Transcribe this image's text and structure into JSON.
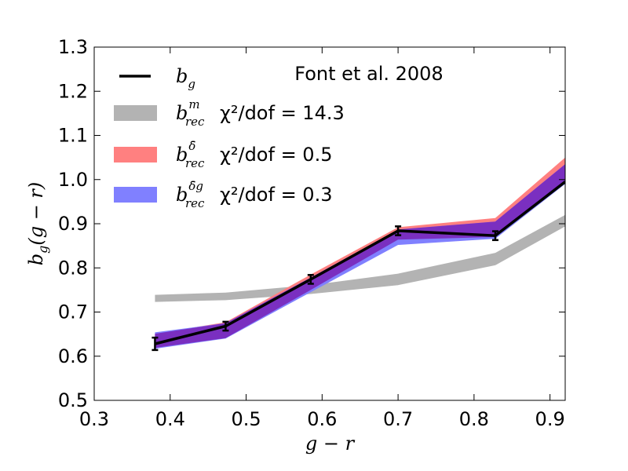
{
  "chart_data": {
    "type": "line",
    "xlabel": "g − r",
    "ylabel": "b",
    "ylabel_sub": "g",
    "ylabel_tail": "(g − r)",
    "xlim": [
      0.3,
      0.92
    ],
    "ylim": [
      0.5,
      1.3
    ],
    "xticks": [
      "0.3",
      "0.4",
      "0.5",
      "0.6",
      "0.7",
      "0.8",
      "0.9"
    ],
    "yticks": [
      "0.5",
      "0.6",
      "0.7",
      "0.8",
      "0.9",
      "1.0",
      "1.1",
      "1.2",
      "1.3"
    ],
    "annotation": "Font et al. 2008",
    "legend_position": "top-left",
    "series": [
      {
        "key": "bg",
        "style": "line-with-errors",
        "color": "#000000",
        "legend_symbol": "b",
        "legend_sub": "g",
        "legend_sup": "",
        "legend_chi": "",
        "x": [
          0.38,
          0.473,
          0.585,
          0.7,
          0.828,
          0.92
        ],
        "y": [
          0.628,
          0.668,
          0.774,
          0.884,
          0.873,
          0.995
        ],
        "err": [
          0.014,
          0.01,
          0.01,
          0.01,
          0.01,
          0.0
        ]
      },
      {
        "key": "brec_m",
        "style": "band",
        "color": "#b3b3b3",
        "legend_symbol": "b",
        "legend_sub": "rec",
        "legend_sup": "m",
        "legend_chi": "χ²/dof = 14.3",
        "x": [
          0.38,
          0.473,
          0.585,
          0.7,
          0.828,
          0.92
        ],
        "lower": [
          0.723,
          0.727,
          0.741,
          0.761,
          0.806,
          0.894
        ],
        "upper": [
          0.739,
          0.744,
          0.761,
          0.787,
          0.834,
          0.92
        ]
      },
      {
        "key": "brec_delta",
        "style": "band",
        "color": "#ff8080",
        "legend_symbol": "b",
        "legend_sub": "rec",
        "legend_sup": "δ̄",
        "legend_chi": "χ²/dof = 0.5",
        "x": [
          0.38,
          0.473,
          0.585,
          0.7,
          0.828,
          0.92
        ],
        "lower": [
          0.619,
          0.641,
          0.75,
          0.864,
          0.87,
          0.993
        ],
        "upper": [
          0.651,
          0.677,
          0.785,
          0.892,
          0.913,
          1.05
        ]
      },
      {
        "key": "brec_delta_g",
        "style": "band",
        "color": "#8080ff",
        "legend_symbol": "b",
        "legend_sub": "rec",
        "legend_sup": "δ̄g",
        "legend_chi": "χ²/dof = 0.3",
        "x": [
          0.38,
          0.473,
          0.585,
          0.7,
          0.828,
          0.92
        ],
        "lower": [
          0.617,
          0.64,
          0.745,
          0.852,
          0.866,
          0.99
        ],
        "upper": [
          0.654,
          0.675,
          0.778,
          0.887,
          0.905,
          1.035
        ]
      }
    ],
    "overlap_color": "#7a2fc0"
  }
}
